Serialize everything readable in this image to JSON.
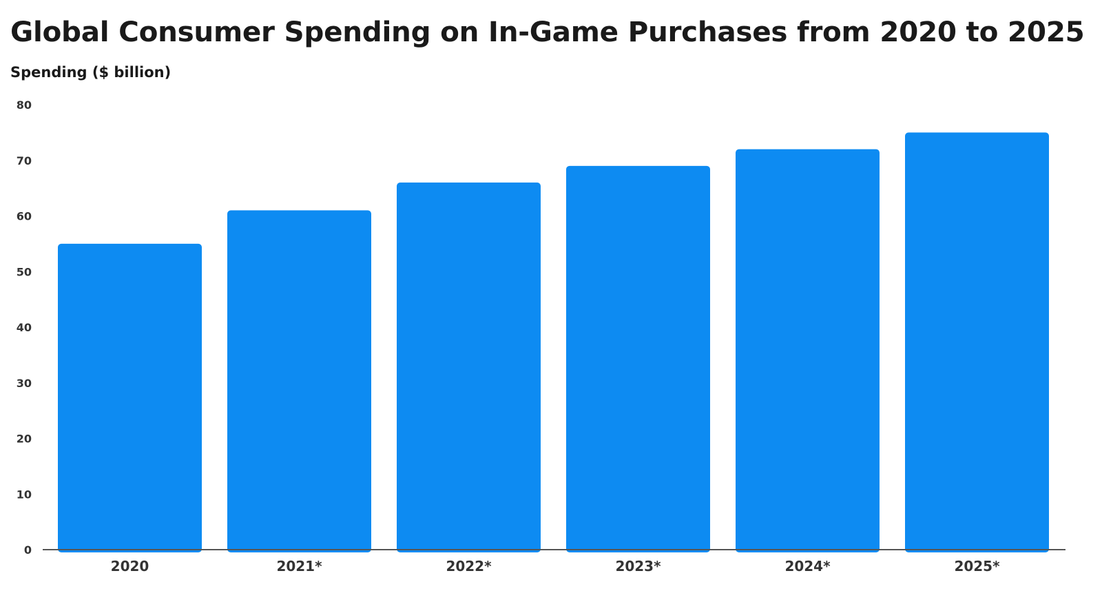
{
  "chart_data": {
    "type": "bar",
    "title": "Global Consumer Spending on In-Game Purchases from 2020 to 2025",
    "ylabel": "Spending ($ billion)",
    "xlabel": "",
    "categories": [
      "2020",
      "2021*",
      "2022*",
      "2023*",
      "2024*",
      "2025*"
    ],
    "values": [
      55,
      61,
      66,
      69,
      72,
      75
    ],
    "ylim": [
      0,
      80
    ],
    "yticks": [
      "0",
      "10",
      "20",
      "30",
      "40",
      "50",
      "60",
      "70",
      "80"
    ],
    "grid": false,
    "legend": "none",
    "bar_color": "#0d8bf2",
    "axis_color": "#555555"
  }
}
